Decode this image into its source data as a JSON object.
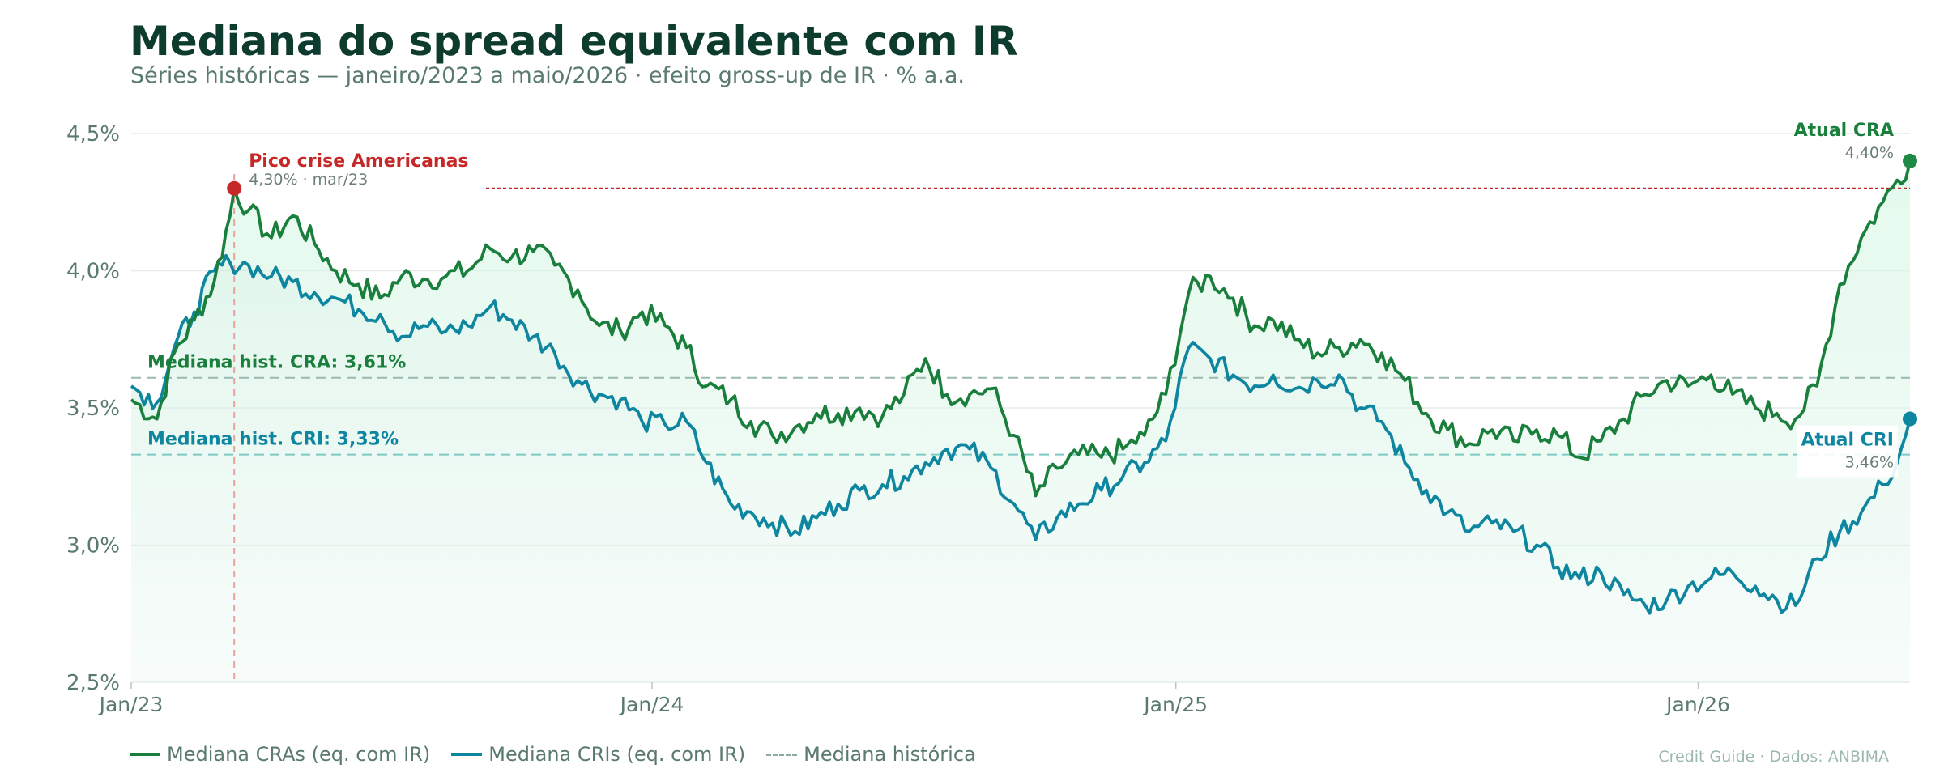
{
  "header": {
    "title": "Mediana do spread equivalente com IR",
    "subtitle": "Séries históricas — janeiro/2023 a maio/2026 · efeito gross-up de IR · % a.a."
  },
  "footer": {
    "source": "Credit Guide · Dados: ANBIMA"
  },
  "colors": {
    "cra": "#1a7f3c",
    "cri": "#0e86a0",
    "peak": "#c62828",
    "grid": "#e4ebe8",
    "axis_text": "#5a7a70",
    "title": "#0d3b2e"
  },
  "chart_data": {
    "type": "line",
    "x_axis": {
      "start": "2023-01-02",
      "end": "2026-05-29",
      "ticks": [
        "Jan/23",
        "Jan/24",
        "Jan/25",
        "Jan/26"
      ]
    },
    "y_axis": {
      "ylim": [
        2.5,
        4.5
      ],
      "ticks": [
        "2,5%",
        "3,0%",
        "3,5%",
        "4,0%",
        "4,5%"
      ]
    },
    "grid": true,
    "legend_position": "bottom-left",
    "series": [
      {
        "name": "Mediana CRAs (eq. com IR)",
        "points": [
          [
            "2023-01-02",
            3.53
          ],
          [
            "2023-01-20",
            3.46
          ],
          [
            "2023-02-01",
            3.7
          ],
          [
            "2023-02-15",
            3.82
          ],
          [
            "2023-03-01",
            3.96
          ],
          [
            "2023-03-12",
            4.2
          ],
          [
            "2023-03-15",
            4.3
          ],
          [
            "2023-03-25",
            4.22
          ],
          [
            "2023-04-10",
            4.12
          ],
          [
            "2023-04-25",
            4.2
          ],
          [
            "2023-05-10",
            4.1
          ],
          [
            "2023-05-25",
            4.0
          ],
          [
            "2023-06-10",
            3.95
          ],
          [
            "2023-06-25",
            3.9
          ],
          [
            "2023-07-10",
            3.98
          ],
          [
            "2023-07-25",
            3.97
          ],
          [
            "2023-08-10",
            3.98
          ],
          [
            "2023-08-25",
            4.0
          ],
          [
            "2023-09-10",
            4.08
          ],
          [
            "2023-09-25",
            4.05
          ],
          [
            "2023-10-10",
            4.07
          ],
          [
            "2023-10-25",
            4.02
          ],
          [
            "2023-11-10",
            3.93
          ],
          [
            "2023-11-25",
            3.8
          ],
          [
            "2023-12-10",
            3.78
          ],
          [
            "2023-12-25",
            3.85
          ],
          [
            "2024-01-10",
            3.8
          ],
          [
            "2024-01-25",
            3.72
          ],
          [
            "2024-02-08",
            3.58
          ],
          [
            "2024-02-25",
            3.53
          ],
          [
            "2024-03-10",
            3.45
          ],
          [
            "2024-03-25",
            3.4
          ],
          [
            "2024-04-10",
            3.43
          ],
          [
            "2024-04-25",
            3.48
          ],
          [
            "2024-05-10",
            3.48
          ],
          [
            "2024-05-25",
            3.5
          ],
          [
            "2024-06-10",
            3.47
          ],
          [
            "2024-06-25",
            3.55
          ],
          [
            "2024-07-10",
            3.68
          ],
          [
            "2024-07-25",
            3.55
          ],
          [
            "2024-08-10",
            3.55
          ],
          [
            "2024-08-25",
            3.57
          ],
          [
            "2024-09-10",
            3.4
          ],
          [
            "2024-09-25",
            3.18
          ],
          [
            "2024-10-10",
            3.28
          ],
          [
            "2024-10-25",
            3.33
          ],
          [
            "2024-11-10",
            3.32
          ],
          [
            "2024-11-25",
            3.35
          ],
          [
            "2024-12-10",
            3.4
          ],
          [
            "2024-12-25",
            3.55
          ],
          [
            "2025-01-10",
            3.92
          ],
          [
            "2025-01-25",
            3.98
          ],
          [
            "2025-02-10",
            3.9
          ],
          [
            "2025-02-25",
            3.8
          ],
          [
            "2025-03-10",
            3.82
          ],
          [
            "2025-03-25",
            3.75
          ],
          [
            "2025-04-10",
            3.7
          ],
          [
            "2025-04-25",
            3.72
          ],
          [
            "2025-05-10",
            3.75
          ],
          [
            "2025-05-25",
            3.7
          ],
          [
            "2025-06-10",
            3.6
          ],
          [
            "2025-06-25",
            3.48
          ],
          [
            "2025-07-10",
            3.42
          ],
          [
            "2025-07-25",
            3.37
          ],
          [
            "2025-08-10",
            3.42
          ],
          [
            "2025-08-25",
            3.38
          ],
          [
            "2025-09-10",
            3.42
          ],
          [
            "2025-09-25",
            3.4
          ],
          [
            "2025-10-10",
            3.32
          ],
          [
            "2025-10-25",
            3.38
          ],
          [
            "2025-11-10",
            3.46
          ],
          [
            "2025-11-25",
            3.55
          ],
          [
            "2025-12-10",
            3.6
          ],
          [
            "2025-12-25",
            3.58
          ],
          [
            "2026-01-10",
            3.62
          ],
          [
            "2026-01-25",
            3.55
          ],
          [
            "2026-02-10",
            3.5
          ],
          [
            "2026-02-25",
            3.48
          ],
          [
            "2026-03-10",
            3.46
          ],
          [
            "2026-03-25",
            3.58
          ],
          [
            "2026-04-10",
            3.95
          ],
          [
            "2026-04-25",
            4.12
          ],
          [
            "2026-05-10",
            4.25
          ],
          [
            "2026-05-20",
            4.33
          ],
          [
            "2026-05-29",
            4.4
          ]
        ]
      },
      {
        "name": "Mediana CRIs (eq. com IR)",
        "points": [
          [
            "2023-01-02",
            3.58
          ],
          [
            "2023-01-20",
            3.52
          ],
          [
            "2023-02-01",
            3.72
          ],
          [
            "2023-02-15",
            3.85
          ],
          [
            "2023-03-01",
            4.0
          ],
          [
            "2023-03-12",
            4.03
          ],
          [
            "2023-03-25",
            4.02
          ],
          [
            "2023-04-10",
            3.98
          ],
          [
            "2023-04-25",
            3.96
          ],
          [
            "2023-05-10",
            3.92
          ],
          [
            "2023-05-25",
            3.9
          ],
          [
            "2023-06-10",
            3.86
          ],
          [
            "2023-06-25",
            3.84
          ],
          [
            "2023-07-10",
            3.76
          ],
          [
            "2023-07-25",
            3.8
          ],
          [
            "2023-08-10",
            3.78
          ],
          [
            "2023-08-25",
            3.8
          ],
          [
            "2023-09-10",
            3.87
          ],
          [
            "2023-09-25",
            3.82
          ],
          [
            "2023-10-10",
            3.76
          ],
          [
            "2023-10-25",
            3.7
          ],
          [
            "2023-11-10",
            3.6
          ],
          [
            "2023-11-25",
            3.55
          ],
          [
            "2023-12-10",
            3.53
          ],
          [
            "2023-12-25",
            3.45
          ],
          [
            "2024-01-10",
            3.44
          ],
          [
            "2024-01-25",
            3.45
          ],
          [
            "2024-02-08",
            3.3
          ],
          [
            "2024-02-25",
            3.15
          ],
          [
            "2024-03-10",
            3.12
          ],
          [
            "2024-03-25",
            3.08
          ],
          [
            "2024-04-10",
            3.05
          ],
          [
            "2024-04-25",
            3.1
          ],
          [
            "2024-05-10",
            3.15
          ],
          [
            "2024-05-25",
            3.2
          ],
          [
            "2024-06-10",
            3.22
          ],
          [
            "2024-06-25",
            3.25
          ],
          [
            "2024-07-10",
            3.3
          ],
          [
            "2024-07-25",
            3.35
          ],
          [
            "2024-08-10",
            3.35
          ],
          [
            "2024-08-25",
            3.28
          ],
          [
            "2024-09-10",
            3.15
          ],
          [
            "2024-09-25",
            3.02
          ],
          [
            "2024-10-10",
            3.1
          ],
          [
            "2024-10-25",
            3.15
          ],
          [
            "2024-11-10",
            3.2
          ],
          [
            "2024-11-25",
            3.25
          ],
          [
            "2024-12-10",
            3.3
          ],
          [
            "2024-12-25",
            3.38
          ],
          [
            "2025-01-10",
            3.72
          ],
          [
            "2025-01-25",
            3.68
          ],
          [
            "2025-02-10",
            3.62
          ],
          [
            "2025-02-25",
            3.58
          ],
          [
            "2025-03-10",
            3.62
          ],
          [
            "2025-03-25",
            3.57
          ],
          [
            "2025-04-10",
            3.6
          ],
          [
            "2025-04-25",
            3.62
          ],
          [
            "2025-05-10",
            3.5
          ],
          [
            "2025-05-25",
            3.45
          ],
          [
            "2025-06-10",
            3.3
          ],
          [
            "2025-06-25",
            3.2
          ],
          [
            "2025-07-10",
            3.12
          ],
          [
            "2025-07-25",
            3.05
          ],
          [
            "2025-08-10",
            3.08
          ],
          [
            "2025-08-25",
            3.05
          ],
          [
            "2025-09-10",
            3.0
          ],
          [
            "2025-09-25",
            2.92
          ],
          [
            "2025-10-10",
            2.88
          ],
          [
            "2025-10-25",
            2.9
          ],
          [
            "2025-11-10",
            2.82
          ],
          [
            "2025-11-25",
            2.78
          ],
          [
            "2025-12-10",
            2.8
          ],
          [
            "2025-12-25",
            2.85
          ],
          [
            "2026-01-10",
            2.88
          ],
          [
            "2026-01-25",
            2.9
          ],
          [
            "2026-02-10",
            2.85
          ],
          [
            "2026-02-25",
            2.8
          ],
          [
            "2026-03-10",
            2.78
          ],
          [
            "2026-03-25",
            2.95
          ],
          [
            "2026-04-10",
            3.05
          ],
          [
            "2026-04-25",
            3.12
          ],
          [
            "2026-05-10",
            3.22
          ],
          [
            "2026-05-20",
            3.3
          ],
          [
            "2026-05-29",
            3.46
          ]
        ]
      }
    ],
    "reference_lines": [
      {
        "label": "Mediana hist. CRA: 3,61%",
        "value": 3.61,
        "series": "cra"
      },
      {
        "label": "Mediana hist. CRI: 3,33%",
        "value": 3.33,
        "series": "cri"
      }
    ],
    "annotations": {
      "peak": {
        "title": "Pico crise Americanas",
        "detail": "4,30% · mar/23",
        "date": "2023-03-15",
        "value": 4.3
      },
      "current_cra": {
        "title": "Atual CRA",
        "detail": "4,40%",
        "value": 4.4
      },
      "current_cri": {
        "title": "Atual CRI",
        "detail": "3,46%",
        "value": 3.46
      }
    },
    "legend": {
      "cra": "Mediana CRAs (eq. com IR)",
      "cri": "Mediana CRIs (eq. com IR)",
      "historical": "Mediana histórica"
    }
  }
}
